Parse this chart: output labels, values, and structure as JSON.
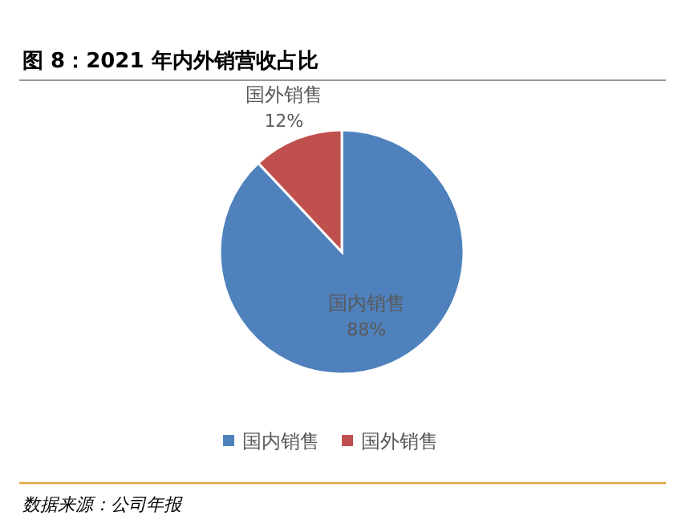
{
  "chart_data": {
    "type": "pie",
    "title": "图 8：2021 年内外销营收占比",
    "categories": [
      "国内销售",
      "国外销售"
    ],
    "values": [
      88,
      12
    ],
    "colors": [
      "#4f81bd",
      "#c0504d"
    ],
    "value_labels": [
      "88%",
      "12%"
    ],
    "legend": "bottom",
    "annotations": [
      "数据来源：公司年报"
    ]
  }
}
